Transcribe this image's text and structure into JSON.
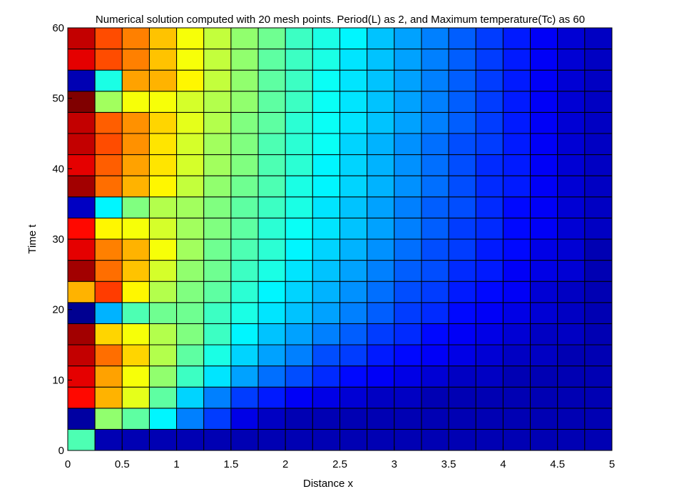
{
  "chart_data": {
    "type": "heatmap",
    "title": "Numerical solution computed with 20 mesh points. Period(L) as 2, and Maximum temperature(Tc) as 60",
    "xlabel": "Distance x",
    "ylabel": "Time t",
    "xlim": [
      0,
      5
    ],
    "ylim": [
      0,
      60
    ],
    "x_ticks": [
      "0",
      "0.5",
      "1",
      "1.5",
      "2",
      "2.5",
      "3",
      "3.5",
      "4",
      "4.5",
      "5"
    ],
    "y_ticks": [
      "0",
      "10",
      "20",
      "30",
      "40",
      "50",
      "60"
    ],
    "colormap": "jet",
    "value_range": [
      0,
      60
    ],
    "rows_bottom_to_top": [
      [
        27,
        3,
        3,
        3,
        3,
        3,
        3,
        3,
        3,
        3,
        3,
        3,
        3,
        3,
        3,
        3,
        3,
        3,
        3,
        3
      ],
      [
        2,
        31,
        28,
        22,
        15,
        11,
        6,
        4,
        3,
        3,
        3,
        3,
        3,
        3,
        3,
        3,
        3,
        3,
        3,
        3
      ],
      [
        52,
        42,
        36,
        28,
        20,
        15,
        11,
        9,
        7,
        6,
        5,
        4,
        4,
        3,
        3,
        3,
        3,
        3,
        3,
        3
      ],
      [
        54,
        43,
        37,
        31,
        26,
        21,
        17,
        14,
        12,
        10,
        8,
        7,
        6,
        5,
        4,
        4,
        3,
        3,
        3,
        3
      ],
      [
        56,
        46,
        40,
        33,
        28,
        24,
        20,
        17,
        15,
        12,
        11,
        9,
        8,
        7,
        6,
        5,
        4,
        4,
        3,
        3
      ],
      [
        58,
        40,
        37,
        33,
        30,
        26,
        22,
        19,
        17,
        15,
        13,
        11,
        10,
        8,
        7,
        6,
        5,
        4,
        4,
        3
      ],
      [
        1,
        18,
        27,
        29,
        29,
        26,
        24,
        21,
        19,
        17,
        15,
        13,
        11,
        10,
        8,
        7,
        6,
        5,
        4,
        3
      ],
      [
        42,
        49,
        38,
        33,
        30,
        28,
        25,
        22,
        20,
        18,
        16,
        14,
        12,
        11,
        9,
        8,
        7,
        5,
        4,
        3
      ],
      [
        58,
        46,
        41,
        35,
        31,
        29,
        26,
        24,
        21,
        19,
        17,
        15,
        13,
        12,
        10,
        9,
        7,
        6,
        5,
        3
      ],
      [
        54,
        45,
        42,
        37,
        32,
        29,
        27,
        25,
        22,
        20,
        18,
        16,
        14,
        12,
        11,
        9,
        8,
        6,
        5,
        3
      ],
      [
        52,
        38,
        37,
        35,
        32,
        30,
        28,
        25,
        23,
        21,
        19,
        17,
        15,
        13,
        11,
        10,
        8,
        7,
        5,
        4
      ],
      [
        4,
        22,
        30,
        33,
        32,
        30,
        28,
        26,
        24,
        21,
        19,
        17,
        15,
        13,
        12,
        10,
        8,
        7,
        5,
        4
      ],
      [
        58,
        46,
        42,
        38,
        34,
        31,
        29,
        27,
        24,
        22,
        20,
        18,
        16,
        14,
        12,
        10,
        9,
        7,
        5,
        4
      ],
      [
        54,
        47,
        43,
        39,
        35,
        32,
        30,
        27,
        25,
        22,
        20,
        18,
        16,
        14,
        12,
        10,
        9,
        7,
        5,
        4
      ],
      [
        56,
        48,
        44,
        39,
        35,
        32,
        30,
        27,
        25,
        23,
        20,
        18,
        16,
        14,
        12,
        11,
        9,
        7,
        5,
        4
      ],
      [
        56,
        47,
        44,
        40,
        36,
        33,
        30,
        28,
        25,
        23,
        21,
        19,
        17,
        15,
        13,
        11,
        9,
        7,
        5,
        4
      ],
      [
        60,
        32,
        37,
        37,
        35,
        33,
        31,
        28,
        26,
        23,
        21,
        19,
        17,
        15,
        13,
        11,
        9,
        7,
        5,
        4
      ],
      [
        3,
        24,
        43,
        42,
        38,
        34,
        31,
        28,
        26,
        23,
        21,
        19,
        17,
        15,
        13,
        11,
        9,
        7,
        5,
        4
      ],
      [
        54,
        48,
        45,
        41,
        37,
        34,
        31,
        28,
        26,
        24,
        21,
        19,
        17,
        15,
        13,
        11,
        9,
        7,
        5,
        4
      ],
      [
        56,
        48,
        45,
        41,
        37,
        34,
        31,
        29,
        26,
        24,
        22,
        19,
        17,
        15,
        13,
        11,
        9,
        7,
        5,
        4
      ]
    ]
  }
}
